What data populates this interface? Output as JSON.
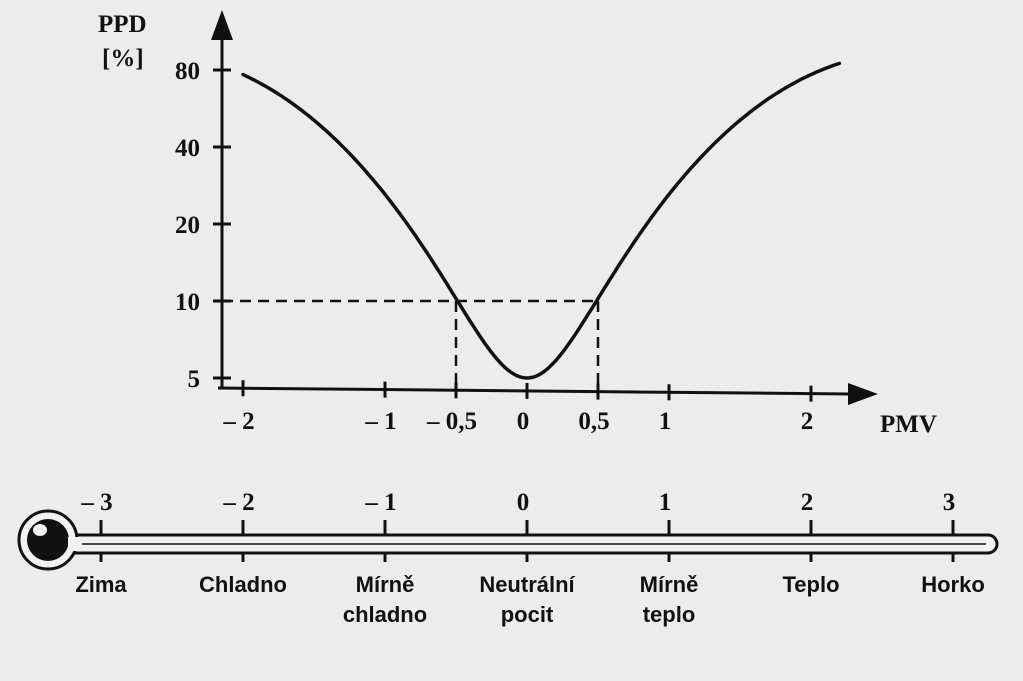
{
  "chart_data": {
    "type": "line",
    "ylabel_line1": "PPD",
    "ylabel_line2": "[%]",
    "xlabel": "PMV",
    "x_ticks": [
      {
        "value": -2,
        "label": "– 2"
      },
      {
        "value": -1,
        "label": "– 1"
      },
      {
        "value": -0.5,
        "label": "– 0,5"
      },
      {
        "value": 0,
        "label": "0"
      },
      {
        "value": 0.5,
        "label": "0,5"
      },
      {
        "value": 1,
        "label": "1"
      },
      {
        "value": 2,
        "label": "2"
      }
    ],
    "y_ticks": [
      {
        "value": 5,
        "label": "5"
      },
      {
        "value": 10,
        "label": "10"
      },
      {
        "value": 20,
        "label": "20"
      },
      {
        "value": 40,
        "label": "40"
      },
      {
        "value": 80,
        "label": "80"
      }
    ],
    "y_scale": "log",
    "series": [
      {
        "x": [
          -2.0,
          -1.75,
          -1.5,
          -1.25,
          -1.0,
          -0.75,
          -0.5,
          -0.25,
          0.0,
          0.25,
          0.5,
          0.75,
          1.0,
          1.25,
          1.5,
          1.75,
          2.0,
          2.2
        ],
        "y": [
          76.8,
          64.4,
          51.0,
          37.8,
          26.1,
          16.8,
          10.2,
          6.3,
          5.0,
          6.3,
          10.2,
          16.8,
          26.1,
          37.8,
          51.0,
          64.4,
          76.8,
          85.0
        ]
      }
    ],
    "reference_lines": [
      {
        "pmv_from": -0.5,
        "pmv_to": 0.5,
        "ppd": 10
      }
    ]
  },
  "thermometer": {
    "scale": [
      {
        "value": -3,
        "label": "– 3",
        "sensation": [
          "Zima"
        ]
      },
      {
        "value": -2,
        "label": "– 2",
        "sensation": [
          "Chladno"
        ]
      },
      {
        "value": -1,
        "label": "– 1",
        "sensation": [
          "Mírně",
          "chladno"
        ]
      },
      {
        "value": 0,
        "label": "0",
        "sensation": [
          "Neutrální",
          "pocit"
        ]
      },
      {
        "value": 1,
        "label": "1",
        "sensation": [
          "Mírně",
          "teplo"
        ]
      },
      {
        "value": 2,
        "label": "2",
        "sensation": [
          "Teplo"
        ]
      },
      {
        "value": 3,
        "label": "3",
        "sensation": [
          "Horko"
        ]
      }
    ]
  }
}
